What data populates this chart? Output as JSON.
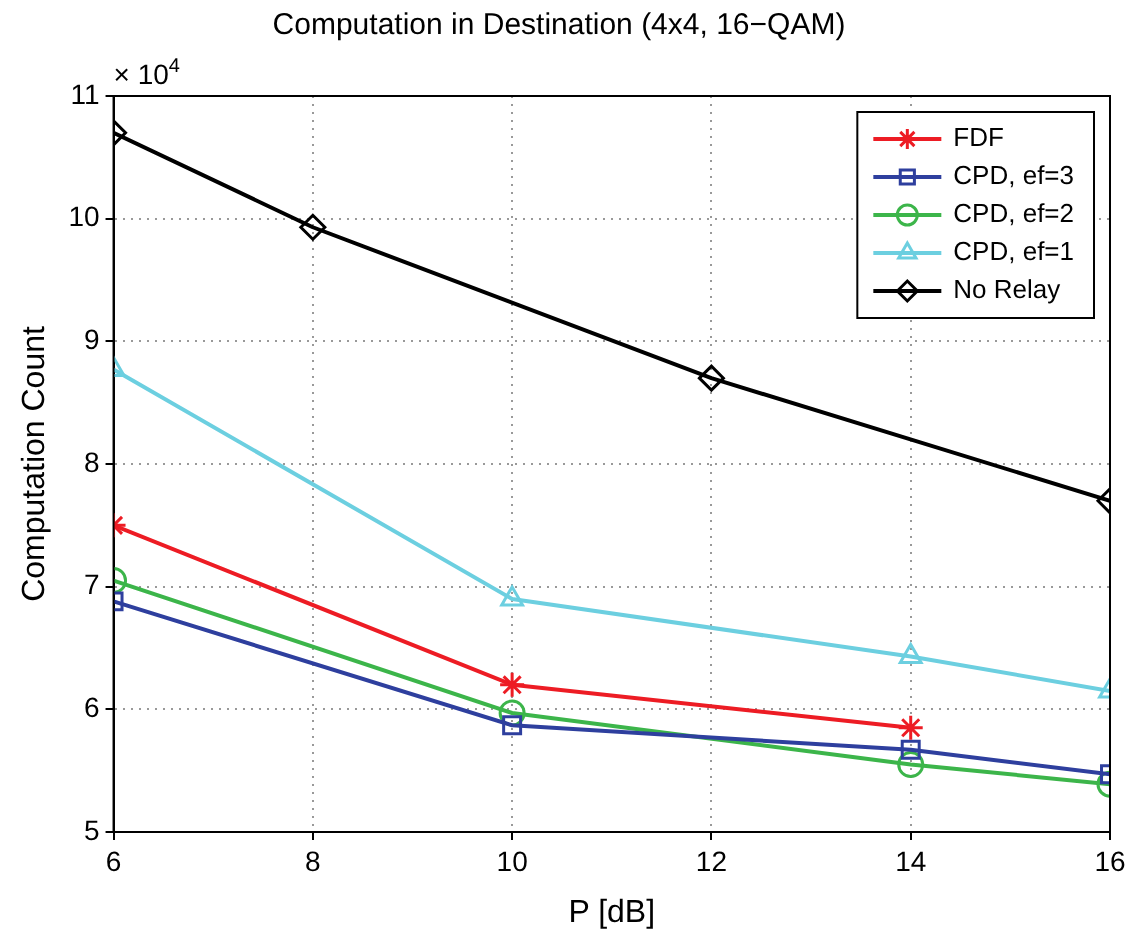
{
  "chart_data": {
    "type": "line",
    "title": "Computation in Destination (4x4, 16−QAM)",
    "xlabel": "P [dB]",
    "ylabel": "Computation Count",
    "annotations": [
      "× 10$^{4}$"
    ],
    "xlim": [
      6,
      16
    ],
    "xticks": [
      6,
      8,
      10,
      12,
      14,
      16
    ],
    "ylim": [
      5,
      11
    ],
    "yticks": [
      5,
      6,
      7,
      8,
      9,
      10,
      11
    ],
    "grid": true,
    "legend": "top right",
    "line_style": "solid",
    "series": [
      {
        "name": "FDF",
        "color": "#ed1c24",
        "marker": "cross",
        "x": [
          6,
          10,
          14
        ],
        "values": [
          7.5,
          6.2,
          5.85
        ]
      },
      {
        "name": "CPD, ef=3",
        "color": "#2e3f9e",
        "marker": "square",
        "x": [
          6,
          10,
          14,
          16
        ],
        "values": [
          6.88,
          5.87,
          5.67,
          5.47
        ]
      },
      {
        "name": "CPD, ef=2",
        "color": "#3cb54a",
        "marker": "circle",
        "x": [
          6,
          10,
          14,
          16
        ],
        "values": [
          7.05,
          5.97,
          5.55,
          5.39
        ]
      },
      {
        "name": "CPD, ef=1",
        "color": "#6ccfe0",
        "marker": "triangle",
        "x": [
          6,
          10,
          14,
          16
        ],
        "values": [
          8.77,
          6.9,
          6.43,
          6.15
        ]
      },
      {
        "name": "No Relay",
        "color": "#000000",
        "marker": "diamond",
        "x": [
          6,
          8,
          12,
          16
        ],
        "values": [
          10.7,
          9.93,
          8.7,
          7.7
        ]
      }
    ]
  }
}
